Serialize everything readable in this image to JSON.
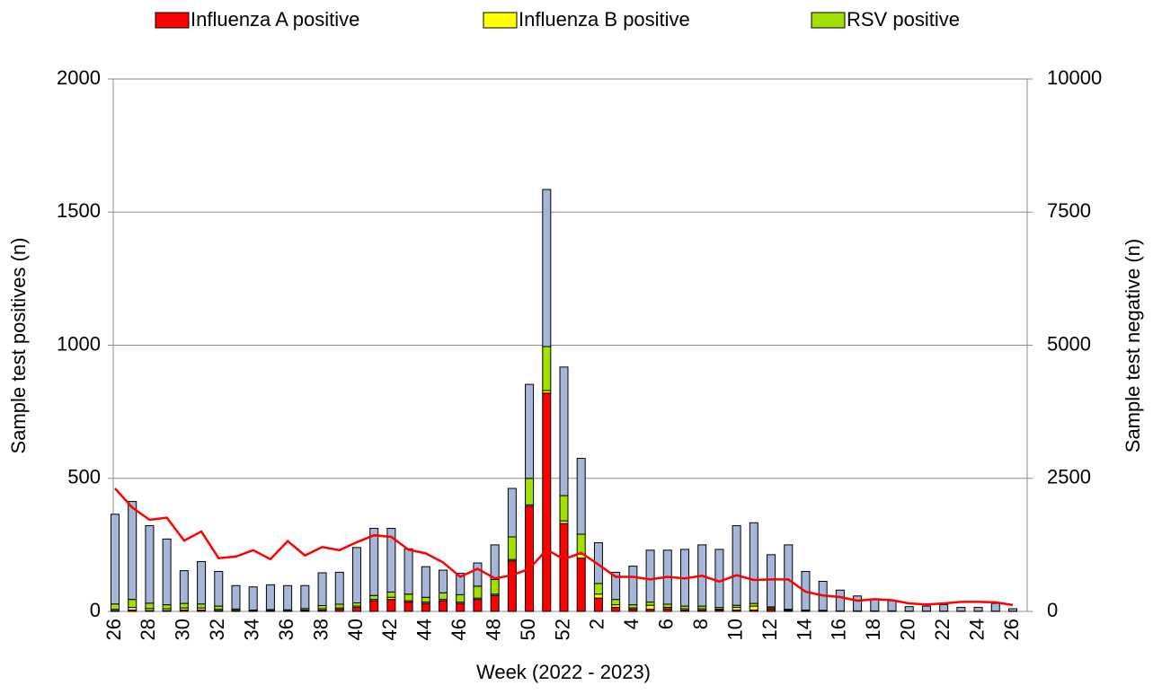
{
  "chart_data": {
    "type": "bar",
    "stacked": true,
    "x_label": "Week (2022 - 2023)",
    "y_label": "Sample test positives (n)",
    "y2_label": "Sample test negative (n)",
    "categories": [
      "26",
      null,
      "28",
      null,
      "30",
      null,
      "32",
      null,
      "34",
      null,
      "36",
      null,
      "38",
      null,
      "40",
      null,
      "42",
      null,
      "44",
      null,
      "46",
      null,
      "48",
      null,
      "50",
      null,
      "52",
      null,
      "2",
      null,
      "4",
      null,
      "6",
      null,
      "8",
      null,
      "10",
      null,
      "12",
      null,
      "14",
      null,
      "16",
      null,
      "18",
      null,
      "20",
      null,
      "22",
      null,
      "24",
      null,
      "26"
    ],
    "series": [
      {
        "name": "Influenza A positive",
        "color": "#ff0000",
        "values": [
          3,
          5,
          3,
          3,
          5,
          5,
          3,
          2,
          1,
          1,
          1,
          2,
          5,
          8,
          15,
          40,
          45,
          35,
          30,
          40,
          30,
          45,
          60,
          190,
          395,
          820,
          330,
          200,
          50,
          15,
          8,
          8,
          10,
          5,
          5,
          5,
          5,
          5,
          8,
          3,
          2,
          1,
          1,
          1,
          1,
          1,
          0,
          0,
          0,
          0,
          0,
          0,
          0
        ]
      },
      {
        "name": "Influenza B positive",
        "color": "#ffff00",
        "values": [
          5,
          10,
          8,
          7,
          8,
          8,
          5,
          2,
          1,
          2,
          1,
          3,
          5,
          5,
          5,
          5,
          8,
          5,
          5,
          5,
          5,
          5,
          5,
          5,
          5,
          10,
          10,
          15,
          15,
          10,
          5,
          15,
          5,
          5,
          5,
          3,
          10,
          15,
          5,
          2,
          1,
          1,
          0,
          0,
          0,
          0,
          0,
          0,
          0,
          0,
          0,
          0,
          0
        ]
      },
      {
        "name": "RSV positive",
        "color": "#a2e000",
        "values": [
          20,
          30,
          20,
          15,
          17,
          15,
          12,
          5,
          3,
          4,
          4,
          6,
          12,
          14,
          12,
          15,
          20,
          25,
          18,
          25,
          28,
          45,
          55,
          85,
          100,
          165,
          95,
          75,
          40,
          20,
          12,
          12,
          12,
          10,
          10,
          7,
          8,
          10,
          4,
          3,
          2,
          2,
          1,
          1,
          1,
          1,
          1,
          1,
          1,
          1,
          1,
          1,
          1
        ]
      },
      {
        "color": "#a6b6d8",
        "values": [
          337,
          368,
          291,
          247,
          123,
          159,
          130,
          88,
          87,
          93,
          91,
          86,
          123,
          120,
          208,
          252,
          239,
          170,
          115,
          85,
          80,
          87,
          130,
          182,
          353,
          590,
          483,
          285,
          153,
          102,
          145,
          195,
          203,
          213,
          230,
          218,
          299,
          303,
          196,
          242,
          145,
          109,
          78,
          56,
          43,
          38,
          17,
          19,
          24,
          14,
          14,
          29,
          9
        ]
      },
      {
        "type": "line",
        "axis": "y2",
        "color": "#ff0000",
        "values": [
          2310,
          1950,
          1720,
          1760,
          1330,
          1500,
          1000,
          1030,
          1150,
          980,
          1320,
          1050,
          1210,
          1150,
          1300,
          1430,
          1400,
          1160,
          1090,
          920,
          650,
          800,
          620,
          680,
          800,
          1160,
          980,
          1100,
          880,
          650,
          650,
          600,
          650,
          620,
          670,
          560,
          680,
          590,
          600,
          600,
          370,
          300,
          270,
          200,
          230,
          210,
          150,
          130,
          150,
          180,
          180,
          170,
          120
        ]
      }
    ],
    "ylim": [
      0,
      2000
    ],
    "yticks": [
      0,
      500,
      1000,
      1500,
      2000
    ],
    "y2lim": [
      0,
      10000
    ],
    "y2ticks": [
      0,
      2500,
      5000,
      7500,
      10000
    ],
    "grid": true,
    "legend": "top"
  }
}
